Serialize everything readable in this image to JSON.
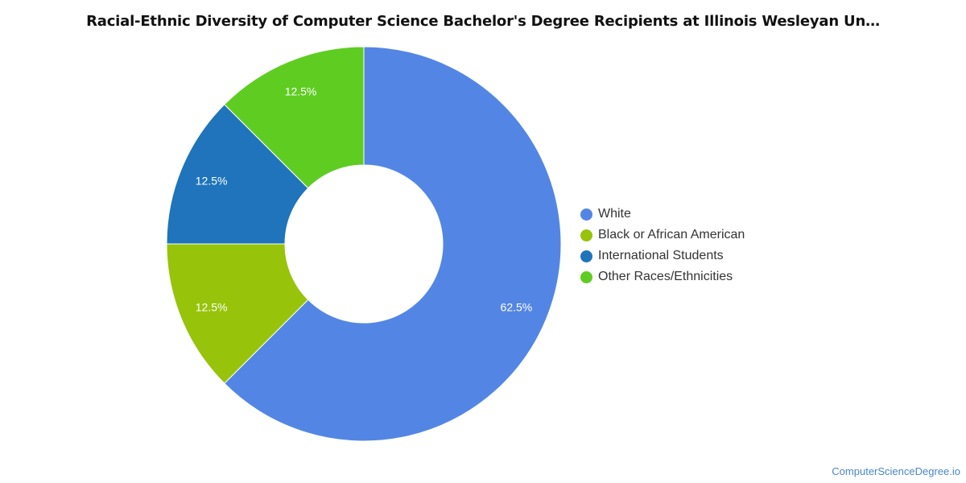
{
  "title": "Racial-Ethnic Diversity of Computer Science Bachelor's Degree Recipients at Illinois Wesleyan Un…",
  "watermark": "ComputerScienceDegree.io",
  "chart_data": {
    "type": "pie",
    "donut": true,
    "legend_position": "right",
    "slices": [
      {
        "label": "White",
        "value": 62.5,
        "display": "62.5%",
        "color": "#5386e4"
      },
      {
        "label": "Black or African American",
        "value": 12.5,
        "display": "12.5%",
        "color": "#97c30a"
      },
      {
        "label": "International Students",
        "value": 12.5,
        "display": "12.5%",
        "color": "#1f74bb"
      },
      {
        "label": "Other Races/Ethnicities",
        "value": 12.5,
        "display": "12.5%",
        "color": "#5fcc22"
      }
    ]
  }
}
